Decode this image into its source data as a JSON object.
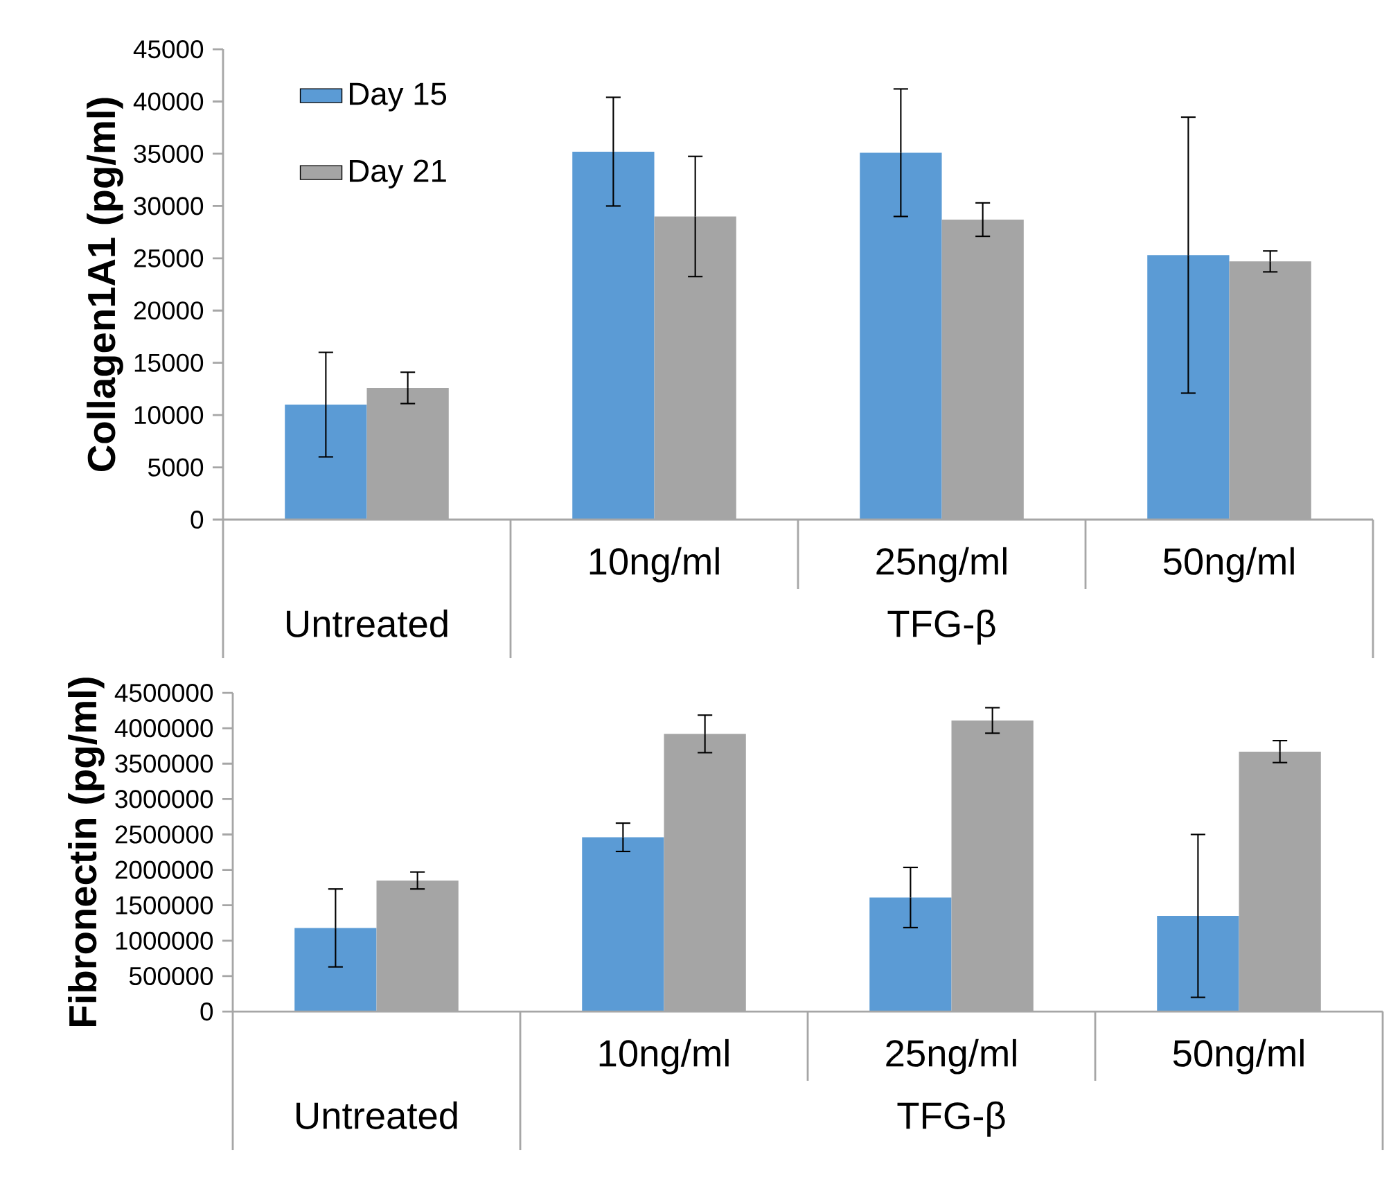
{
  "chart_data": [
    {
      "type": "bar",
      "ylabel": "Collagen1A1 (pg/ml)",
      "categories": [
        "Untreated",
        "10ng/ml",
        "25ng/ml",
        "50ng/ml"
      ],
      "annotations": [
        "TFG-β"
      ],
      "series": [
        {
          "name": "Day 15",
          "color": "#5b9bd5",
          "values": [
            11000,
            35200,
            35100,
            25300
          ],
          "errors": [
            5000,
            5200,
            6100,
            13200
          ]
        },
        {
          "name": "Day 21",
          "color": "#a5a5a5",
          "values": [
            12600,
            29000,
            28700,
            24700
          ],
          "errors": [
            1500,
            5750,
            1600,
            1000
          ]
        }
      ],
      "ylim": [
        0,
        45000
      ],
      "yticks": [
        0,
        5000,
        10000,
        15000,
        20000,
        25000,
        30000,
        35000,
        40000,
        45000
      ],
      "legend": "top left",
      "grid": false
    },
    {
      "type": "bar",
      "ylabel": "Fibronectin (pg/ml)",
      "categories": [
        "Untreated",
        "10ng/ml",
        "25ng/ml",
        "50ng/ml"
      ],
      "annotations": [
        "TFG-β"
      ],
      "series": [
        {
          "color": "#5b9bd5",
          "values": [
            1180000,
            2460000,
            1610000,
            1350000
          ],
          "errors": [
            550000,
            200000,
            425000,
            1150000
          ]
        },
        {
          "color": "#a5a5a5",
          "values": [
            1850000,
            3920000,
            4110000,
            3670000
          ],
          "errors": [
            120000,
            265000,
            180000,
            155000
          ]
        }
      ],
      "ylim": [
        0,
        4500000
      ],
      "yticks": [
        0,
        500000,
        1000000,
        1500000,
        2000000,
        2500000,
        3000000,
        3500000,
        4000000,
        4500000
      ],
      "legend": false,
      "grid": false
    }
  ]
}
